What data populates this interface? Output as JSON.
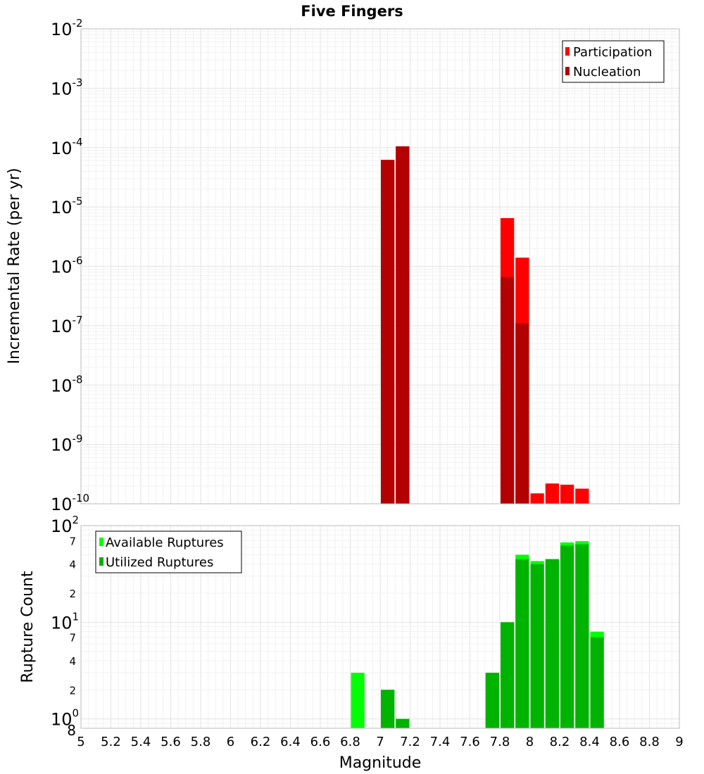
{
  "title": "Five Fingers",
  "xlabel": "Magnitude",
  "x_ticks": [
    5,
    5.2,
    5.4,
    5.6,
    5.8,
    6,
    6.2,
    6.4,
    6.6,
    6.8,
    7,
    7.2,
    7.4,
    7.6,
    7.8,
    8,
    8.2,
    8.4,
    8.6,
    8.8,
    9
  ],
  "x_tick_labels": [
    "5",
    "5.2",
    "5.4",
    "5.6",
    "5.8",
    "6",
    "6.2",
    "6.4",
    "6.6",
    "6.8",
    "7",
    "7.2",
    "7.4",
    "7.6",
    "7.8",
    "8",
    "8.2",
    "8.4",
    "8.6",
    "8.8",
    "9"
  ],
  "colors": {
    "participation": "#ff0000",
    "nucleation": "#b30000",
    "available": "#00ff00",
    "utilized": "#00b300",
    "grid_major": "#e2e2e2",
    "grid_minor": "#f1f1f1",
    "frame": "#bbbbbb"
  },
  "chart_data": [
    {
      "type": "bar",
      "panel": "top",
      "title": "Five Fingers",
      "xlabel": "Magnitude",
      "ylabel": "Incremental Rate (per yr)",
      "y_scale": "log",
      "xlim": [
        5,
        9
      ],
      "ylim": [
        1e-10,
        0.01
      ],
      "bar_width": 0.1,
      "y_tick_values": [
        -10,
        -9,
        -8,
        -7,
        -6,
        -5,
        -4,
        -3,
        -2
      ],
      "y_tick_base": "10",
      "y_tick_exponents": [
        "-10",
        "-9",
        "-8",
        "-7",
        "-6",
        "-5",
        "-4",
        "-3",
        "-2"
      ],
      "legend": "top-right",
      "series": [
        {
          "name": "Participation",
          "x": [
            7.05,
            7.15,
            7.85,
            7.95,
            8.05,
            8.15,
            8.25,
            8.35
          ],
          "values": [
            6.2e-05,
            0.000105,
            6.5e-06,
            1.4e-06,
            1.5e-10,
            2.2e-10,
            2.1e-10,
            1.8e-10
          ]
        },
        {
          "name": "Nucleation",
          "x": [
            7.05,
            7.15,
            7.85,
            7.95
          ],
          "values": [
            6.2e-05,
            0.000105,
            6.6e-07,
            1.1e-07
          ]
        }
      ]
    },
    {
      "type": "bar",
      "panel": "bottom",
      "xlabel": "Magnitude",
      "ylabel": "Rupture Count",
      "y_scale": "log",
      "xlim": [
        5,
        9
      ],
      "ylim": [
        0.8,
        100
      ],
      "bar_width": 0.1,
      "y_major_ticks": [
        {
          "value": 1,
          "base": "10",
          "exp": "0"
        },
        {
          "value": 10,
          "base": "10",
          "exp": "1"
        },
        {
          "value": 100,
          "base": "10",
          "exp": "2"
        }
      ],
      "y_minor_ticks": [
        {
          "value": 0.8,
          "label": "8"
        },
        {
          "value": 2,
          "label": "2"
        },
        {
          "value": 4,
          "label": "4"
        },
        {
          "value": 7,
          "label": "7"
        },
        {
          "value": 20,
          "label": "2"
        },
        {
          "value": 40,
          "label": "4"
        },
        {
          "value": 70,
          "label": "7"
        }
      ],
      "legend": "top-left",
      "series": [
        {
          "name": "Available Ruptures",
          "x": [
            6.85,
            7.05,
            7.15,
            7.75,
            7.85,
            7.95,
            8.05,
            8.15,
            8.25,
            8.35,
            8.45
          ],
          "values": [
            3,
            2,
            1,
            3,
            10,
            50,
            43,
            45,
            67,
            69,
            8
          ]
        },
        {
          "name": "Utilized Ruptures",
          "x": [
            7.05,
            7.15,
            7.75,
            7.85,
            7.95,
            8.05,
            8.15,
            8.25,
            8.35,
            8.45
          ],
          "values": [
            2,
            1,
            3,
            10,
            45,
            40,
            45,
            62,
            64,
            7
          ]
        }
      ]
    }
  ]
}
